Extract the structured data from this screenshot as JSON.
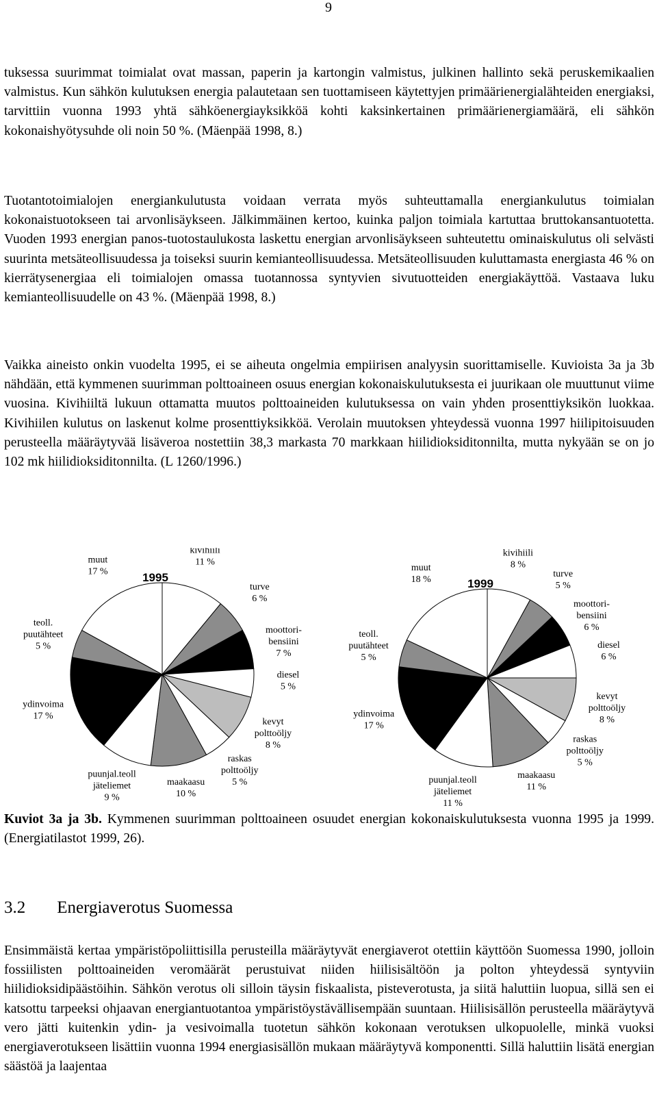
{
  "page_number": "9",
  "paragraphs": [
    "tuksessa suurimmat toimialat ovat massan, paperin ja kartongin valmistus, julkinen hallinto sekä peruskemikaalien valmistus. Kun sähkön kulutuksen energia palautetaan sen tuottamiseen käytettyjen primäärienergialähteiden energiaksi, tarvittiin vuonna 1993 yhtä sähköenergiayksikköä kohti kaksinkertainen primäärienergiamäärä, eli sähkön kokonaishyötysuhde oli noin 50 %. (Mäenpää 1998, 8.)",
    "Tuotantotoimialojen energiankulutusta voidaan verrata myös suhteuttamalla energiankulutus toimialan kokonaistuotokseen tai arvonlisäykseen. Jälkimmäinen kertoo, kuinka paljon toimiala kartuttaa bruttokansantuotetta. Vuoden 1993 energian panos-tuotostaulukosta laskettu energian arvonlisäykseen suhteutettu ominaiskulutus oli selvästi suurinta metsäteollisuudessa ja toiseksi suurin kemianteollisuudessa. Metsäteollisuuden kuluttamasta energiasta 46 % on kierrätysenergiaa eli toimialojen omassa tuotannossa syntyvien sivutuotteiden energiakäyttöä. Vastaava luku kemianteollisuudelle on 43 %. (Mäenpää 1998, 8.)",
    "Vaikka aineisto onkin vuodelta 1995, ei se aiheuta ongelmia empiirisen analyysin suorittamiselle. Kuvioista 3a ja 3b nähdään, että kymmenen suurimman polttoaineen osuus energian kokonaiskulutuksesta ei juurikaan ole muuttunut viime vuosina. Kivihiiltä lukuun ottamatta muutos polttoaineiden kulutuksessa on vain yhden prosenttiyksikön luokkaa. Kivihiilen kulutus on laskenut kolme prosenttiyksikköä. Verolain muutoksen yhteydessä vuonna 1997 hiilipitoisuuden perusteella määräytyvää lisäveroa nostettiin 38,3 markasta 70 markkaan hiilidioksiditonnilta, mutta nykyään se on jo 102 mk hiilidioksiditonnilta. (L 1260/1996.)"
  ],
  "chart_data": [
    {
      "type": "pie",
      "title": "1995",
      "categories": [
        "kivihiili",
        "turve",
        "moottori-\nbensiini",
        "diesel",
        "kevyt\npolttoöljy",
        "raskas\npolttoöljy",
        "maakaasu",
        "puunjal.teoll\njäteliemet",
        "ydinvoima",
        "teoll.\npuutähteet",
        "muut"
      ],
      "values": [
        11,
        6,
        7,
        5,
        8,
        5,
        10,
        9,
        17,
        5,
        17
      ],
      "value_labels": [
        "11 %",
        "6 %",
        "7 %",
        "5 %",
        "8 %",
        "5 %",
        "10 %",
        "9 %",
        "17 %",
        "5 %",
        "17 %"
      ],
      "colors": [
        "#ffffff",
        "#8c8c8c",
        "#000000",
        "#ffffff",
        "#bdbdbd",
        "#ffffff",
        "#8c8c8c",
        "#ffffff",
        "#000000",
        "#8c8c8c",
        "#ffffff"
      ]
    },
    {
      "type": "pie",
      "title": "1999",
      "categories": [
        "kivihiili",
        "turve",
        "moottori-\nbensiini",
        "diesel",
        "kevyt\npolttoöljy",
        "raskas\npolttoöljy",
        "maakaasu",
        "puunjal.teoll\njäteliemet",
        "ydinvoima",
        "teoll.\npuutähteet",
        "muut"
      ],
      "values": [
        8,
        5,
        6,
        6,
        8,
        5,
        11,
        11,
        17,
        5,
        18
      ],
      "value_labels": [
        "8 %",
        "5 %",
        "6 %",
        "6 %",
        "8 %",
        "5 %",
        "11 %",
        "11 %",
        "17 %",
        "5 %",
        "18 %"
      ],
      "colors": [
        "#ffffff",
        "#8c8c8c",
        "#000000",
        "#ffffff",
        "#bdbdbd",
        "#ffffff",
        "#8c8c8c",
        "#ffffff",
        "#000000",
        "#8c8c8c",
        "#ffffff"
      ]
    }
  ],
  "caption": {
    "label": "Kuviot 3a ja 3b.",
    "text": "Kymmenen suurimman polttoaineen osuudet energian kokonaiskulutuksesta vuonna 1995 ja 1999. (Energiatilastot 1999, 26)."
  },
  "section": {
    "number": "3.2",
    "title": "Energiaverotus Suomessa"
  },
  "section_paragraph": "Ensimmäistä kertaa ympäristöpoliittisilla perusteilla määräytyvät energiaverot otettiin käyttöön Suomessa 1990, jolloin fossiilisten polttoaineiden veromäärät perustuivat niiden hiilisisältöön ja polton yhteydessä syntyviin hiilidioksidipäästöihin. Sähkön verotus oli silloin täysin fiskaalista, pisteverotusta, ja siitä haluttiin luopua, sillä sen ei katsottu tarpeeksi ohjaavan energiantuotantoa ympäristöystävällisempään suuntaan. Hiilisisällön perusteella määräytyvä vero jätti kuitenkin ydin- ja vesivoimalla tuotetun sähkön kokonaan verotuksen ulkopuolelle, minkä vuoksi energiaverotukseen lisättiin vuonna 1994 energiasisällön mukaan määräytyvä komponentti. Sillä haluttiin lisätä energian säästöä ja laajentaa"
}
